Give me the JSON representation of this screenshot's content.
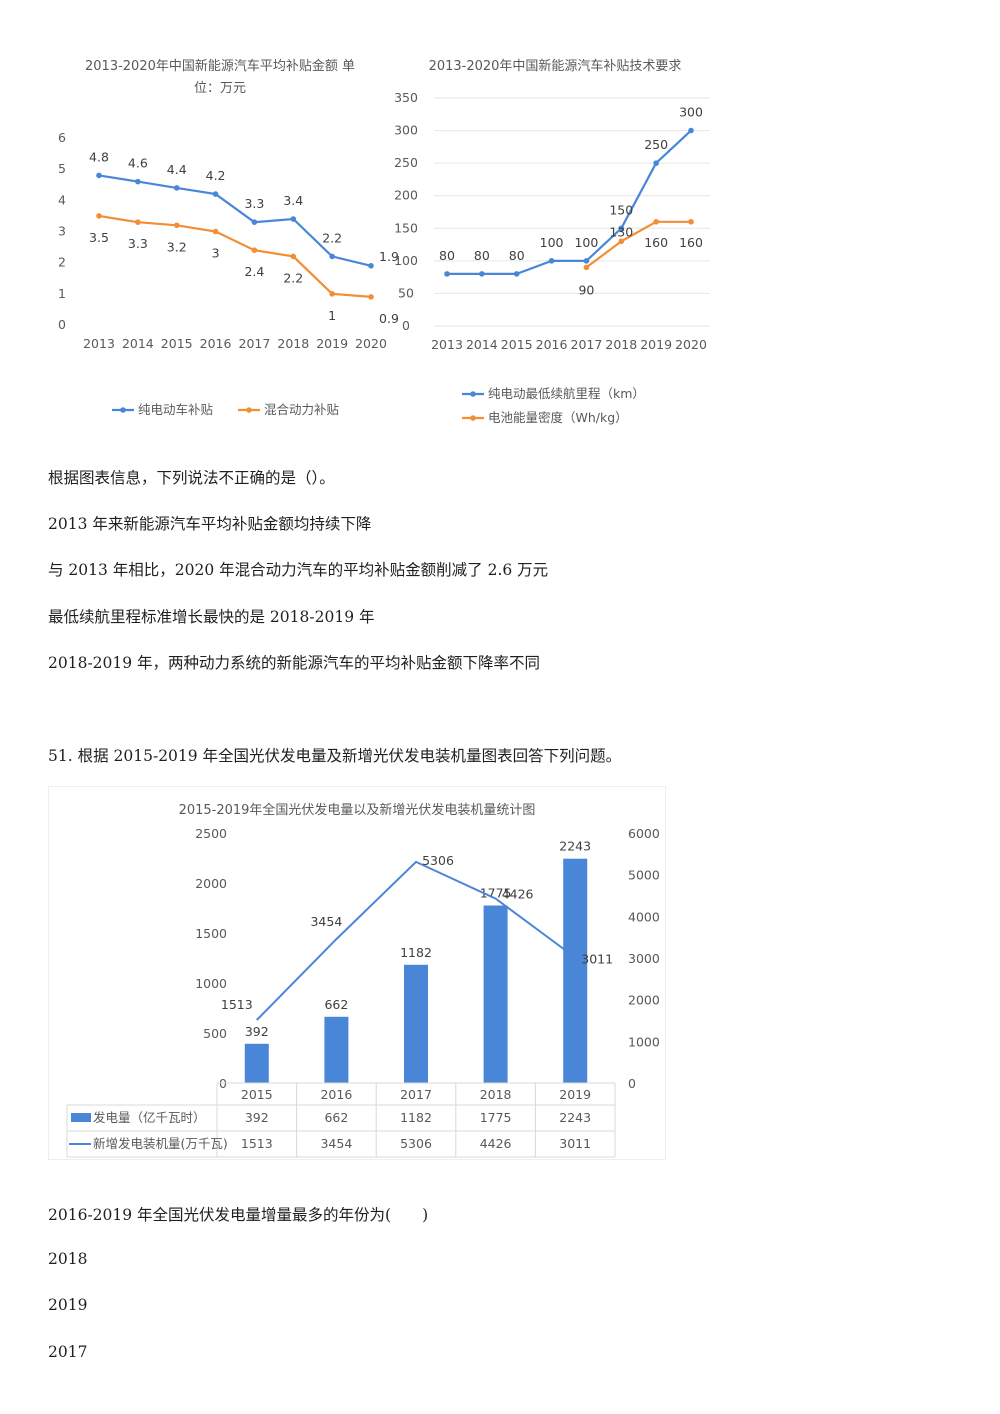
{
  "colors": {
    "blue": "#4a86d8",
    "orange": "#f28e34",
    "bar": "#4a86d8",
    "text": "#595959"
  },
  "chart_data": [
    {
      "type": "line",
      "title": "2013-2020年中国新能源汽车平均补贴金额 单位：万元",
      "title_line1": "2013-2020年中国新能源汽车平均补贴金额 单",
      "title_line2": "位：万元",
      "x": [
        "2013",
        "2014",
        "2015",
        "2016",
        "2017",
        "2018",
        "2019",
        "2020"
      ],
      "ylim": [
        0,
        6
      ],
      "yticks": [
        "0",
        "1",
        "2",
        "3",
        "4",
        "5",
        "6"
      ],
      "series": [
        {
          "name": "纯电动车补贴",
          "color": "#4a86d8",
          "values": [
            4.8,
            4.6,
            4.4,
            4.2,
            3.3,
            3.4,
            2.2,
            1.9
          ],
          "labels": [
            "4.8",
            "4.6",
            "4.4",
            "4.2",
            "3.3",
            "3.4",
            "2.2",
            "1.9"
          ]
        },
        {
          "name": "混合动力补贴",
          "color": "#f28e34",
          "values": [
            3.5,
            3.3,
            3.2,
            3,
            2.4,
            2.2,
            1,
            0.9
          ],
          "labels": [
            "3.5",
            "3.3",
            "3.2",
            "3",
            "2.4",
            "2.2",
            "1",
            "0.9"
          ]
        }
      ],
      "legend": "bottom"
    },
    {
      "type": "line",
      "title": "2013-2020年中国新能源汽车补贴技术要求",
      "x": [
        "2013",
        "2014",
        "2015",
        "2016",
        "2017",
        "2018",
        "2019",
        "2020"
      ],
      "ylim": [
        0,
        350
      ],
      "yticks": [
        "0",
        "50",
        "100",
        "150",
        "200",
        "250",
        "300",
        "350"
      ],
      "series": [
        {
          "name": "纯电动最低续航里程（km）",
          "color": "#4a86d8",
          "values": [
            80,
            80,
            80,
            100,
            100,
            150,
            250,
            300
          ],
          "labels": [
            "80",
            "80",
            "80",
            "100",
            "100",
            "150",
            "250",
            "300"
          ]
        },
        {
          "name": "电池能量密度（Wh/kg）",
          "color": "#f28e34",
          "values": [
            null,
            null,
            null,
            null,
            90,
            130,
            160,
            160
          ],
          "labels": [
            "",
            "",
            "",
            "",
            "90",
            "130",
            "160",
            "160"
          ]
        }
      ],
      "legend": "bottom"
    },
    {
      "type": "bar",
      "title": "2015-2019年全国光伏发电量以及新增光伏发电装机量统计图",
      "categories": [
        "2015",
        "2016",
        "2017",
        "2018",
        "2019"
      ],
      "ylim": [
        0,
        2500
      ],
      "y2lim": [
        0,
        6000
      ],
      "yticks": [
        "0",
        "500",
        "1000",
        "1500",
        "2000",
        "2500"
      ],
      "y2ticks": [
        "0",
        "1000",
        "2000",
        "3000",
        "4000",
        "5000",
        "6000"
      ],
      "series": [
        {
          "name": "发电量（亿千瓦时）",
          "kind": "bar",
          "axis": "left",
          "color": "#4a86d8",
          "values": [
            392,
            662,
            1182,
            1775,
            2243
          ],
          "labels": [
            "392",
            "662",
            "1182",
            "1775",
            "2243"
          ]
        },
        {
          "name": "新增发电装机量(万千瓦)",
          "kind": "line",
          "axis": "right",
          "color": "#4a86d8",
          "values": [
            1513,
            3454,
            5306,
            4426,
            3011
          ],
          "labels": [
            "1513",
            "3454",
            "5306",
            "4426",
            "3011"
          ]
        }
      ],
      "legend": "data-table"
    }
  ],
  "text": {
    "q1_stem": "根据图表信息，下列说法不正确的是（）。",
    "q1_a": "2013 年来新能源汽车平均补贴金额均持续下降",
    "q1_b": "与 2013 年相比，2020 年混合动力汽车的平均补贴金额削减了 2.6 万元",
    "q1_c": "最低续航里程标准增长最快的是 2018-2019 年",
    "q1_d": "2018-2019 年，两种动力系统的新能源汽车的平均补贴金额下降率不同",
    "q2_intro": "51. 根据 2015-2019 年全国光伏发电量及新增光伏发电装机量图表回答下列问题。",
    "q2_stem": "2016-2019 年全国光伏发电量增量最多的年份为(　　)",
    "q2_a": "2018",
    "q2_b": "2019",
    "q2_c": "2017"
  }
}
